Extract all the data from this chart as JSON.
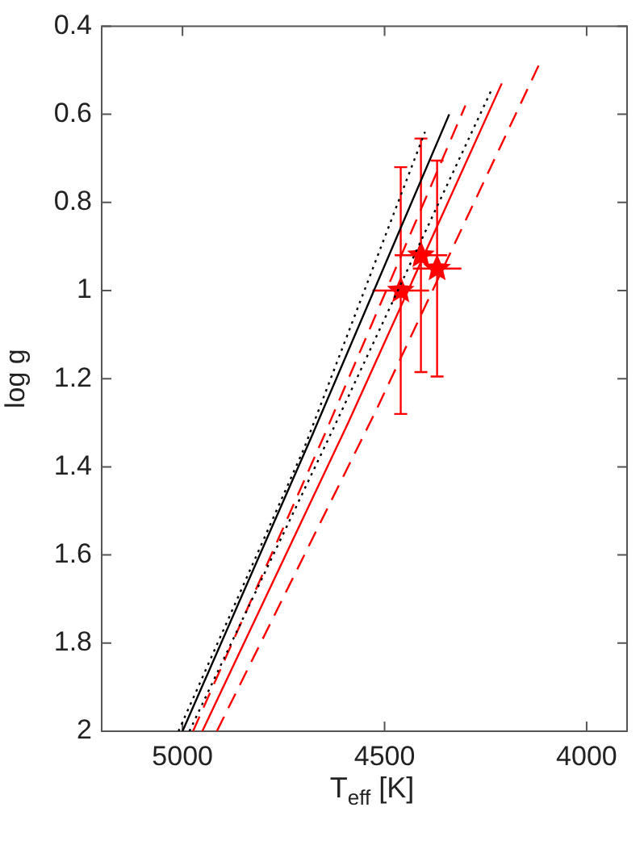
{
  "chart_data": {
    "type": "scatter",
    "xlabel": "T$_{eff}$ [K]",
    "ylabel": "log g",
    "xlim": [
      5200,
      3900
    ],
    "xticks": [
      5000,
      4500,
      4000
    ],
    "ylim": [
      2,
      0.4
    ],
    "yticks": [
      0.4,
      0.6,
      0.8,
      1,
      1.2,
      1.4,
      1.6,
      1.8,
      2
    ],
    "grid": false,
    "legend": false,
    "series": [
      {
        "type": "line",
        "line_style": "dotted",
        "color": "#000000",
        "x": [
          5010,
          4700,
          4400
        ],
        "values": [
          2,
          1.36,
          0.64
        ]
      },
      {
        "type": "line",
        "line_style": "solid",
        "color": "#000000",
        "x": [
          5000,
          4680,
          4340
        ],
        "values": [
          2,
          1.33,
          0.6
        ]
      },
      {
        "type": "line",
        "line_style": "dotted",
        "color": "#000000",
        "x": [
          4983,
          4620,
          4233
        ],
        "values": [
          2,
          1.3,
          0.54
        ]
      },
      {
        "type": "line",
        "line_style": "dashed",
        "color": "#ff0000",
        "x": [
          4974,
          4650,
          4300
        ],
        "values": [
          2,
          1.33,
          0.58
        ]
      },
      {
        "type": "line",
        "line_style": "solid",
        "color": "#ff0000",
        "x": [
          4951,
          4590,
          4210
        ],
        "values": [
          2,
          1.3,
          0.53
        ]
      },
      {
        "type": "line",
        "line_style": "dashed",
        "color": "#ff0000",
        "x": [
          4915,
          4520,
          4114
        ],
        "values": [
          2,
          1.27,
          0.48
        ]
      },
      {
        "type": "scatter",
        "marker": "star",
        "color": "#ff0000",
        "x": [
          4460,
          4410,
          4370
        ],
        "values": [
          1.0,
          0.92,
          0.95
        ],
        "errors": [
          0.28,
          0.265,
          0.245
        ],
        "xerrors": [
          70,
          65,
          60
        ]
      }
    ]
  }
}
